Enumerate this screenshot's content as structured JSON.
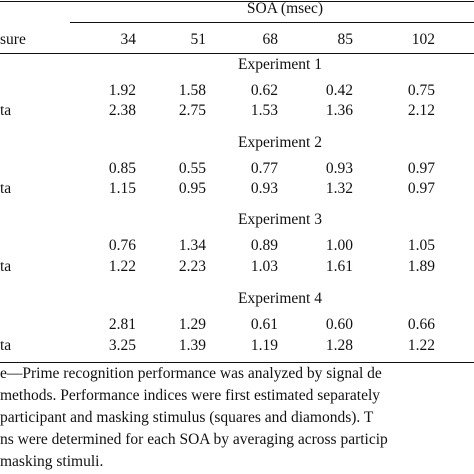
{
  "table": {
    "header": {
      "measure_label": "sure",
      "soa_label": "SOA (msec)",
      "columns": [
        "34",
        "51",
        "68",
        "85",
        "102"
      ]
    },
    "experiments": [
      {
        "title": "Experiment 1",
        "rows": [
          {
            "label": "",
            "values": [
              "1.92",
              "1.58",
              "0.62",
              "0.42",
              "0.75"
            ]
          },
          {
            "label": "ta",
            "values": [
              "2.38",
              "2.75",
              "1.53",
              "1.36",
              "2.12"
            ]
          }
        ]
      },
      {
        "title": "Experiment 2",
        "rows": [
          {
            "label": "",
            "values": [
              "0.85",
              "0.55",
              "0.77",
              "0.93",
              "0.97"
            ]
          },
          {
            "label": "ta",
            "values": [
              "1.15",
              "0.95",
              "0.93",
              "1.32",
              "0.97"
            ]
          }
        ]
      },
      {
        "title": "Experiment 3",
        "rows": [
          {
            "label": "",
            "values": [
              "0.76",
              "1.34",
              "0.89",
              "1.00",
              "1.05"
            ]
          },
          {
            "label": "ta",
            "values": [
              "1.22",
              "2.23",
              "1.03",
              "1.61",
              "1.89"
            ]
          }
        ]
      },
      {
        "title": "Experiment 4",
        "rows": [
          {
            "label": "",
            "values": [
              "2.81",
              "1.29",
              "0.61",
              "0.60",
              "0.66"
            ]
          },
          {
            "label": "ta",
            "values": [
              "3.25",
              "1.39",
              "1.19",
              "1.28",
              "1.22"
            ]
          }
        ]
      }
    ]
  },
  "note": {
    "lines": [
      "e—Prime recognition performance was analyzed by signal de",
      " methods. Performance indices were first estimated separately",
      " participant and masking stimulus (squares and diamonds). T",
      "ns were determined for each SOA by averaging across particip",
      "masking stimuli."
    ]
  }
}
